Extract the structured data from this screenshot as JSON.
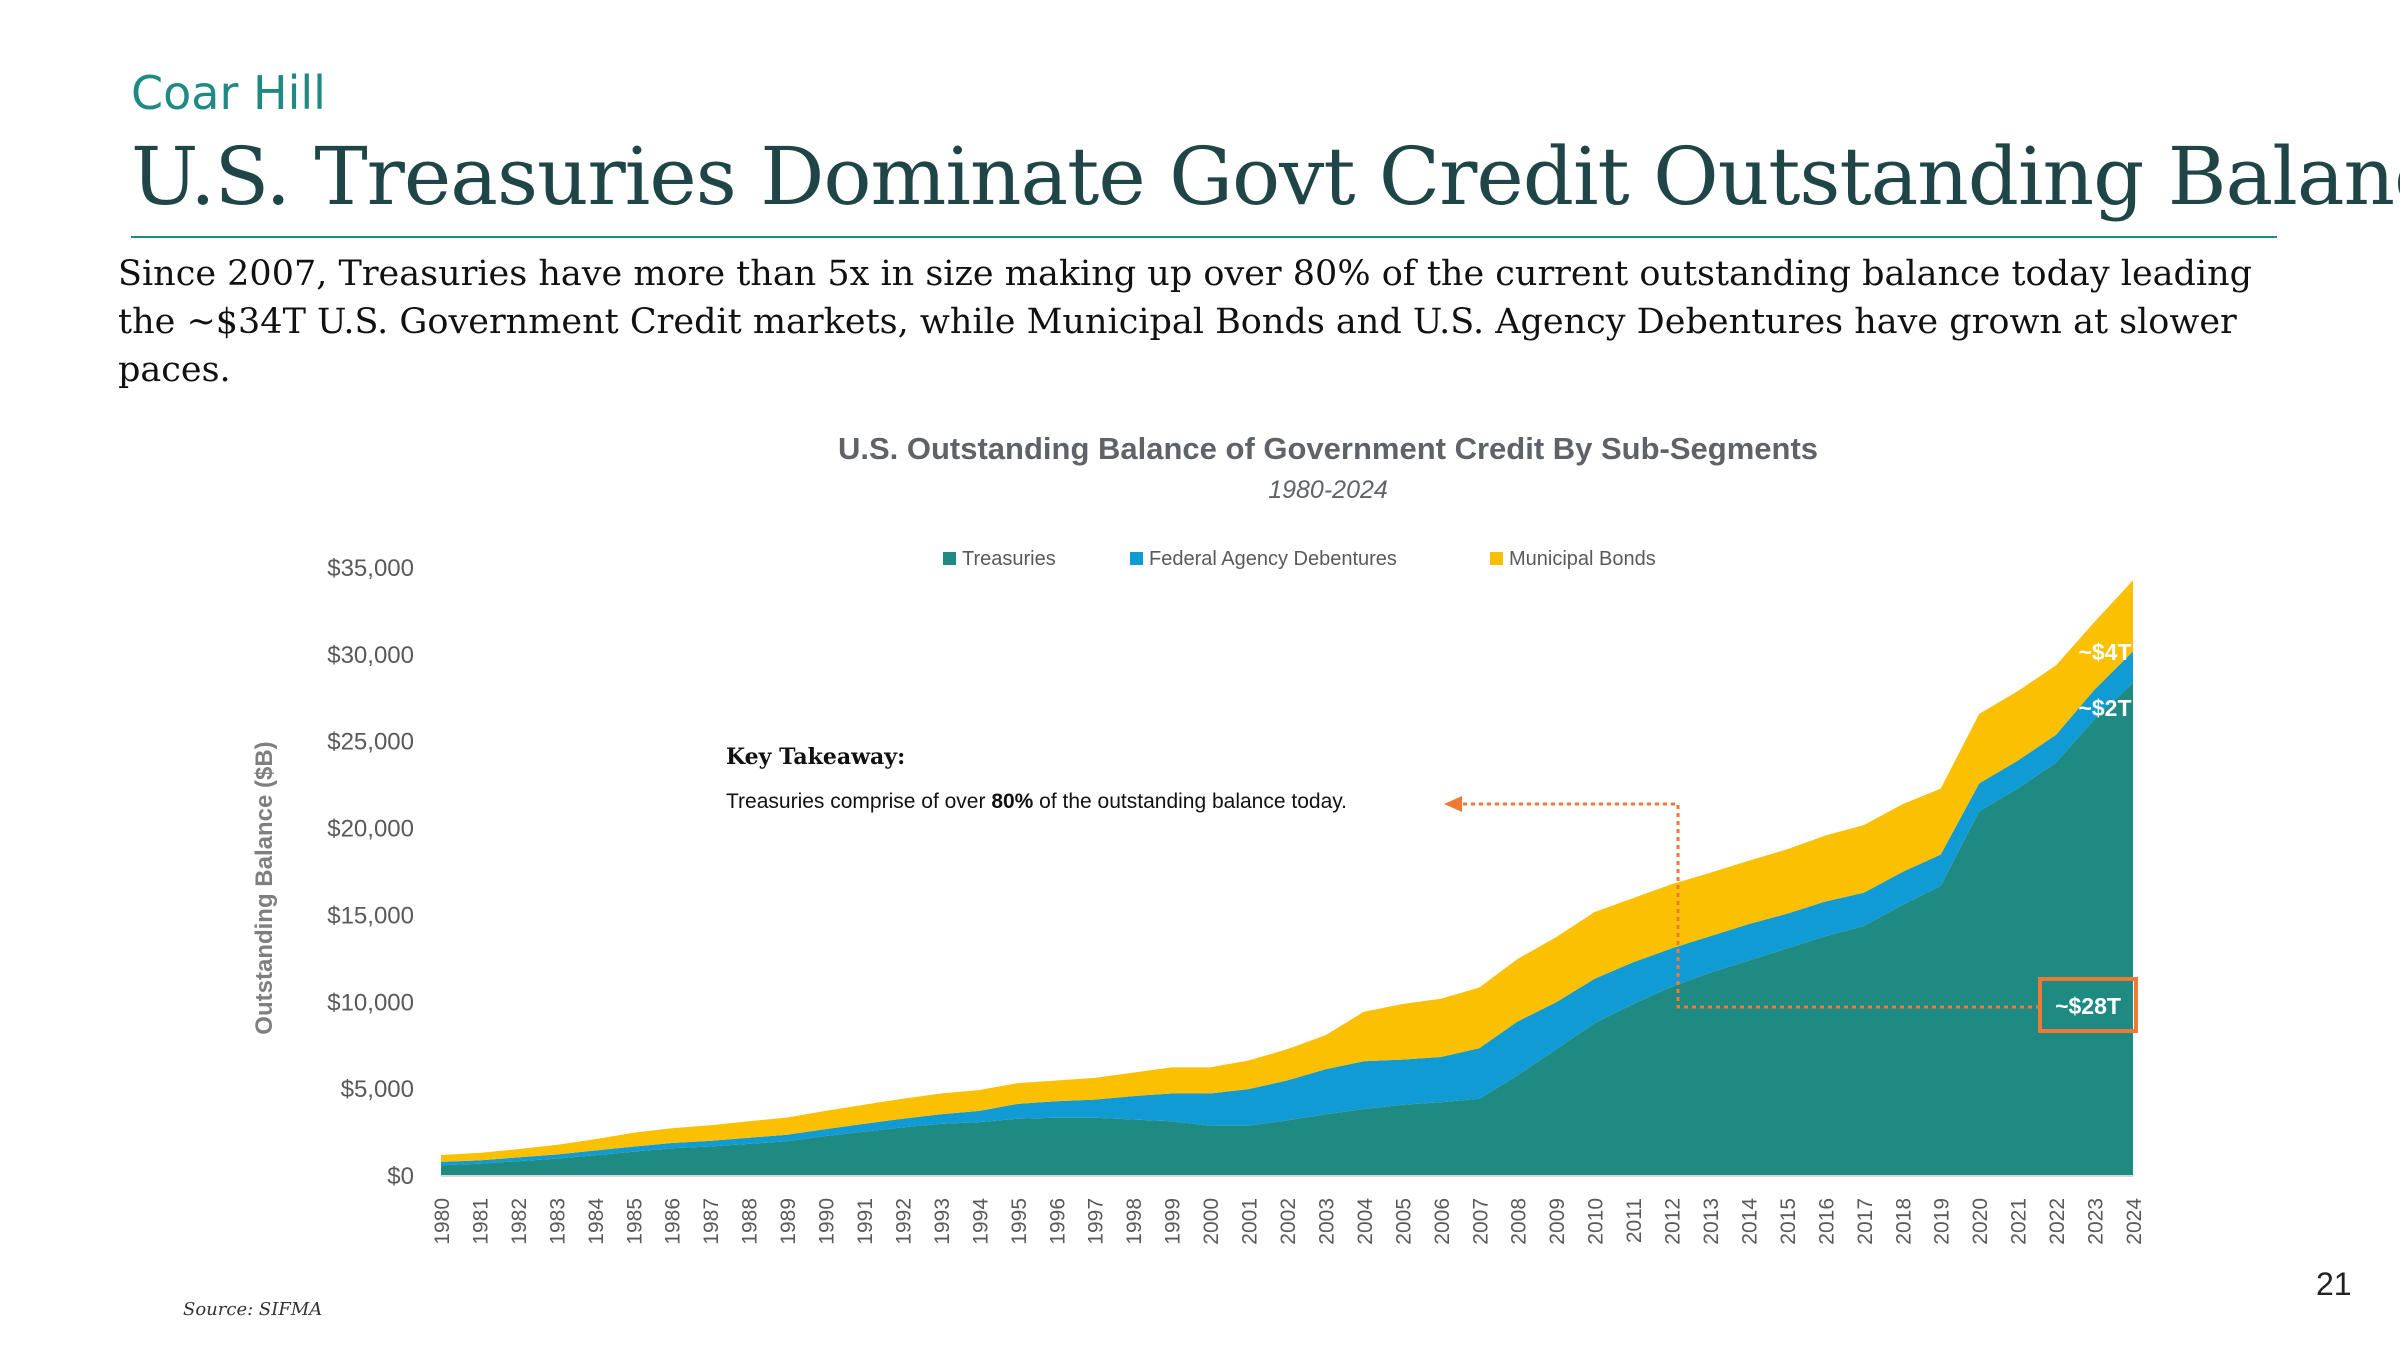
{
  "header": {
    "brand": "Coar Hill",
    "title": "U.S. Treasuries Dominate Govt Credit Outstanding Balance",
    "subtitle": "Since 2007, Treasuries have more than 5x in size making up over 80% of the current outstanding balance today leading the ~$34T U.S. Government Credit markets, while Municipal Bonds and U.S. Agency Debentures have grown at slower paces."
  },
  "colors": {
    "treasuries": "#1f8a82",
    "agency": "#119bd4",
    "municipal": "#fcc003",
    "callout": "#f07a35"
  },
  "chart_data": {
    "type": "area",
    "stacked": true,
    "title": "U.S. Outstanding Balance of Government Credit By Sub-Segments",
    "subtitle": "1980-2024",
    "ylabel": "Outstanding Balance ($B)",
    "xlabel": "",
    "ylim": [
      0,
      35000
    ],
    "y_ticks": [
      0,
      5000,
      10000,
      15000,
      20000,
      25000,
      30000,
      35000
    ],
    "y_tick_labels": [
      "$0",
      "$5,000",
      "$10,000",
      "$15,000",
      "$20,000",
      "$25,000",
      "$30,000",
      "$35,000"
    ],
    "grid": false,
    "legend_position": "top",
    "x": [
      "1980",
      "1981",
      "1982",
      "1983",
      "1984",
      "1985",
      "1986",
      "1987",
      "1988",
      "1989",
      "1990",
      "1991",
      "1992",
      "1993",
      "1994",
      "1995",
      "1996",
      "1997",
      "1998",
      "1999",
      "2000",
      "2001",
      "2002",
      "2003",
      "2004",
      "2005",
      "2006",
      "2007",
      "2008",
      "2009",
      "2010",
      "2011",
      "2012",
      "2013",
      "2014",
      "2015",
      "2016",
      "2017",
      "2018",
      "2019",
      "2020",
      "2021",
      "2022",
      "2023",
      "2024"
    ],
    "series": [
      {
        "name": "Treasuries",
        "color": "#1f8a82",
        "values": [
          620,
          700,
          850,
          1000,
          1200,
          1400,
          1600,
          1700,
          1850,
          2000,
          2300,
          2550,
          2800,
          3000,
          3100,
          3300,
          3350,
          3350,
          3250,
          3150,
          2900,
          2900,
          3200,
          3550,
          3850,
          4100,
          4250,
          4450,
          5800,
          7300,
          8800,
          9900,
          10900,
          11700,
          12400,
          13100,
          13800,
          14400,
          15600,
          16700,
          21000,
          22300,
          23800,
          26300,
          28400
        ]
      },
      {
        "name": "Federal Agency Debentures",
        "color": "#119bd4",
        "values": [
          190,
          200,
          220,
          240,
          270,
          290,
          300,
          320,
          350,
          370,
          400,
          450,
          500,
          550,
          650,
          850,
          950,
          1050,
          1350,
          1600,
          1850,
          2100,
          2300,
          2600,
          2750,
          2600,
          2600,
          2900,
          3100,
          2700,
          2550,
          2400,
          2200,
          2100,
          2100,
          2000,
          2000,
          1900,
          1900,
          1800,
          1600,
          1600,
          1600,
          1700,
          1800
        ]
      },
      {
        "name": "Municipal Bonds",
        "color": "#fcc003",
        "values": [
          400,
          430,
          480,
          550,
          650,
          800,
          850,
          900,
          950,
          1000,
          1050,
          1100,
          1150,
          1200,
          1200,
          1200,
          1200,
          1250,
          1350,
          1500,
          1500,
          1650,
          1800,
          1950,
          2850,
          3200,
          3350,
          3500,
          3600,
          3750,
          3850,
          3700,
          3700,
          3650,
          3650,
          3700,
          3800,
          3900,
          3900,
          3800,
          4000,
          4000,
          4000,
          3900,
          4100
        ]
      }
    ],
    "annotations": {
      "municipal_label": "~$4T",
      "agency_label": "~$2T",
      "treasuries_label": "~$28T"
    }
  },
  "takeaway": {
    "heading": "Key Takeaway:",
    "text_before": "Treasuries comprise of over ",
    "text_bold": "80%",
    "text_after": " of the outstanding balance today."
  },
  "footer": {
    "source": "Source: SIFMA",
    "page_number": "21"
  }
}
